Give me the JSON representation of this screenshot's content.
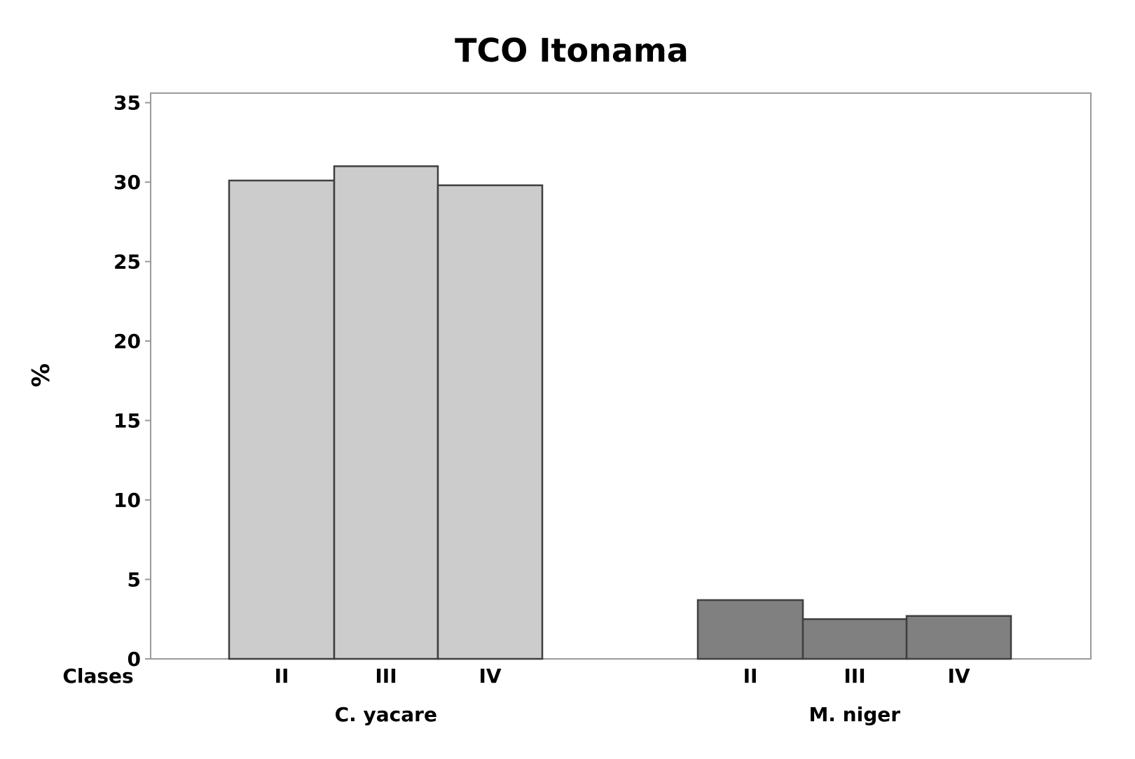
{
  "chart_data": {
    "type": "bar",
    "title": "TCO Itonama",
    "ylabel": "%",
    "xlabel_row_label": "Clases",
    "ylim": [
      0,
      35
    ],
    "yticks": [
      0,
      5,
      10,
      15,
      20,
      25,
      30,
      35
    ],
    "grid": false,
    "legend": "none",
    "groups": [
      {
        "name": "C. yacare",
        "color": "#cccccc",
        "categories": [
          "II",
          "III",
          "IV"
        ],
        "values": [
          30.1,
          31.0,
          29.8
        ]
      },
      {
        "name": "M. niger",
        "color": "#808080",
        "categories": [
          "II",
          "III",
          "IV"
        ],
        "values": [
          3.7,
          2.5,
          2.7
        ]
      }
    ]
  }
}
